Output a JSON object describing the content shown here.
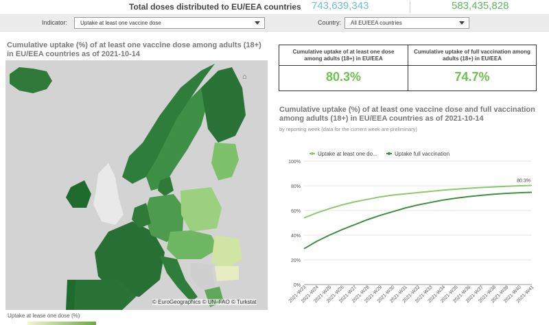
{
  "header": {
    "title": "Total doses distributed to EU/EEA countries",
    "value_left": "743,639,343",
    "value_right": "583,435,828"
  },
  "filters": {
    "indicator_label": "Indicator:",
    "indicator_value": "Uptake at least one vaccine dose",
    "country_label": "Country:",
    "country_value": "All EU/EEA countries"
  },
  "map": {
    "title": "Cumulative uptake (%) of at least one vaccine dose among adults (18+) in EU/EEA countries as of 2021-10-14",
    "copyright": "© EuroGeographics © UN–FAO © Turkstat",
    "legend_label": "Uptake at lease one dose (%)"
  },
  "kpis": [
    {
      "label": "Cumulative uptake of at least one dose among adults (18+) in EU/EEA",
      "value": "80.3%"
    },
    {
      "label": "Cumulative uptake of full vaccination among adults (18+) in EU/EEA",
      "value": "74.7%"
    }
  ],
  "chart": {
    "title": "Cumulative uptake (%) of at least one vaccine dose and full vaccination among adults (18+) in EU/EEA countries as of 2021-10-14",
    "subtitle": "by reporting week (data for the current week are preliminary)"
  },
  "chart_data": {
    "type": "line",
    "x": [
      "2021-W23",
      "2021-W24",
      "2021-W25",
      "2021-W26",
      "2021-W27",
      "2021-W28",
      "2021-W29",
      "2021-W30",
      "2021-W31",
      "2021-W32",
      "2021-W33",
      "2021-W34",
      "2021-W35",
      "2021-W36",
      "2021-W37",
      "2021-W38",
      "2021-W39",
      "2021-W40",
      "2021-W41"
    ],
    "series": [
      {
        "name": "Uptake at least one do...",
        "color": "#8bc96a",
        "values": [
          54,
          58,
          61.5,
          64.5,
          67,
          69,
          71,
          72.5,
          73.5,
          74.5,
          75.5,
          76.5,
          77.3,
          78,
          78.6,
          79.1,
          79.6,
          80.0,
          80.3
        ]
      },
      {
        "name": "Uptake full vaccination",
        "color": "#3f8f3f",
        "values": [
          29,
          35,
          40,
          44.5,
          48.5,
          52.5,
          56,
          59,
          62,
          64.5,
          66.5,
          68.5,
          70,
          71.3,
          72.3,
          73.2,
          73.9,
          74.4,
          74.7
        ]
      }
    ],
    "yticks": [
      "0%",
      "20%",
      "40%",
      "60%",
      "80%",
      "100%"
    ],
    "ylim": [
      0,
      100
    ],
    "end_label": "80.3%",
    "legend_position": "top-left"
  },
  "colors": {
    "accent_teal": "#6fc0c5",
    "accent_green": "#5db85d",
    "kpi_green": "#6dc14e"
  }
}
